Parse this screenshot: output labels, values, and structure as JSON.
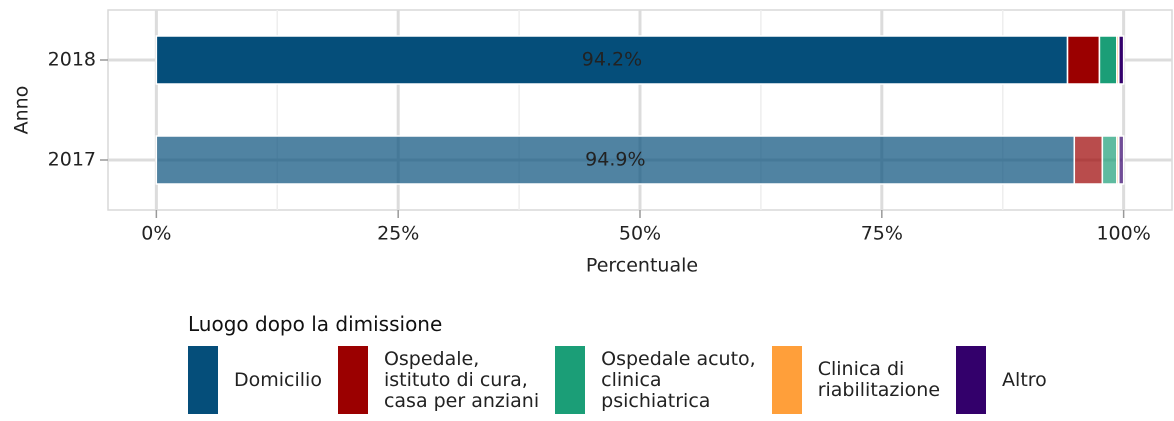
{
  "chart_data": {
    "type": "stacked-bar-horizontal",
    "categories": [
      "2018",
      "2017"
    ],
    "category_opacity": [
      1,
      0.7
    ],
    "series": [
      {
        "name": "Domicilio",
        "color": "#054e7a",
        "values": [
          94.2,
          94.9
        ],
        "value_labels": [
          "94.2%",
          "94.9%"
        ]
      },
      {
        "name": "Ospedale,\nistituto di cura,\ncasa per anziani",
        "color": "#9b0000",
        "values": [
          3.3,
          2.9
        ]
      },
      {
        "name": "Ospedale acuto,\nclinica\npsichiatrica",
        "color": "#1b9e77",
        "values": [
          1.8,
          1.5
        ]
      },
      {
        "name": "Clinica di\nriabilitazione",
        "color": "#ff9f3a",
        "values": [
          0.2,
          0.2
        ]
      },
      {
        "name": "Altro",
        "color": "#33006b",
        "values": [
          0.5,
          0.5
        ]
      }
    ],
    "xlim": [
      -5,
      105
    ],
    "xticks": [
      {
        "value": 0,
        "label": "0%"
      },
      {
        "value": 25,
        "label": "25%"
      },
      {
        "value": 50,
        "label": "50%"
      },
      {
        "value": 75,
        "label": "75%"
      },
      {
        "value": 100,
        "label": "100%"
      }
    ],
    "xminor_ticks": [
      12.5,
      37.5,
      62.5,
      87.5
    ],
    "x_label": "Percentuale",
    "y_label": "Anno",
    "legend_title": "Luogo dopo la dimissione",
    "legend_position": "bottom",
    "grid": true
  }
}
